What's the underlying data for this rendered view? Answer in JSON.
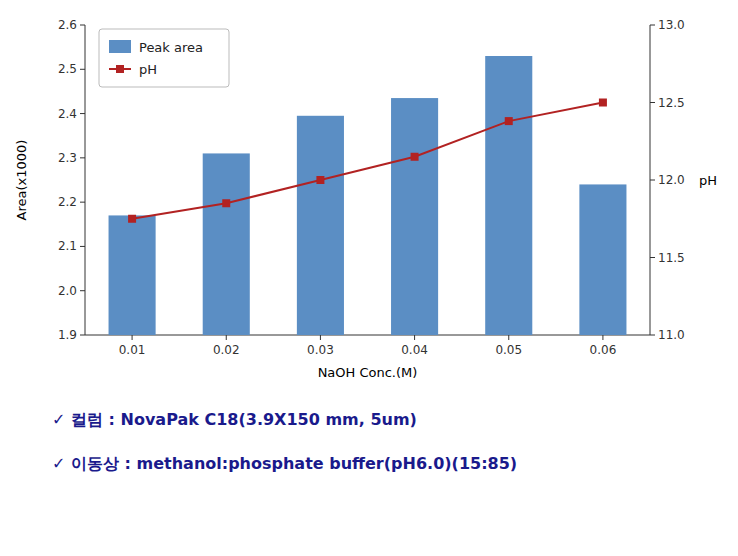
{
  "chart_data": {
    "type": "bar",
    "categories": [
      "0.01",
      "0.02",
      "0.03",
      "0.04",
      "0.05",
      "0.06"
    ],
    "xlabel": "NaOH Conc.(M)",
    "ylabel": "Area(x1000)",
    "y2label": "pH",
    "ylim": [
      1.9,
      2.6
    ],
    "yticks": [
      1.9,
      {
        "value": 2.0,
        "label": "2.0"
      },
      2.1,
      2.2,
      2.3,
      2.4,
      2.5,
      2.6
    ],
    "y2lim": [
      11.0,
      13.0
    ],
    "y2ticks": [
      {
        "value": 11.0,
        "label": "11.0"
      },
      11.5,
      {
        "value": 12.0,
        "label": "12.0"
      },
      12.5,
      {
        "value": 13.0,
        "label": "13.0"
      }
    ],
    "grid": false,
    "legend": "upper left",
    "series": [
      {
        "name": "Peak area",
        "type": "bar",
        "color": "#5b8ec4",
        "values": [
          2.17,
          2.31,
          2.395,
          2.435,
          2.53,
          2.24
        ]
      },
      {
        "name": "pH",
        "type": "line",
        "axis": "y2",
        "color": "#b22222",
        "marker": "square",
        "values": [
          11.75,
          11.85,
          12.0,
          12.15,
          12.38,
          12.5
        ]
      }
    ],
    "annotations": [
      {
        "text": "✓ 컬럼 : NovaPak C18(3.9X150 mm, 5um)",
        "color": "#1a1a8c"
      },
      {
        "text": "✓ 이동상 : methanol:phosphate buffer(pH6.0)(15:85)",
        "color": "#1a1a8c"
      }
    ]
  }
}
